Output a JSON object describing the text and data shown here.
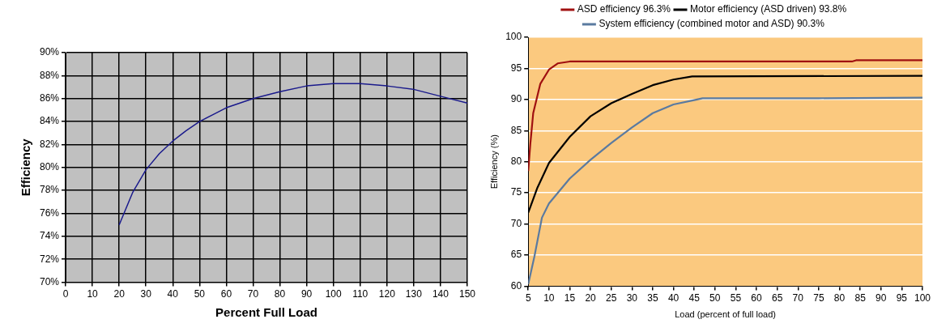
{
  "chart_data": [
    {
      "type": "line",
      "xlabel": "Percent Full Load",
      "ylabel": "Efficiency",
      "xlim": [
        0,
        150
      ],
      "xticks": [
        0,
        10,
        20,
        30,
        40,
        50,
        60,
        70,
        80,
        90,
        100,
        110,
        120,
        130,
        140,
        150
      ],
      "ylim": [
        70,
        90
      ],
      "yticks": [
        {
          "value": 70,
          "label": "70%"
        },
        {
          "value": 72,
          "label": "72%"
        },
        {
          "value": 74,
          "label": "74%"
        },
        {
          "value": 76,
          "label": "76%"
        },
        {
          "value": 78,
          "label": "78%"
        },
        {
          "value": 80,
          "label": "80%"
        },
        {
          "value": 82,
          "label": "82%"
        },
        {
          "value": 84,
          "label": "84%"
        },
        {
          "value": 86,
          "label": "86%"
        },
        {
          "value": 88,
          "label": "88%"
        },
        {
          "value": 90,
          "label": "90%"
        }
      ],
      "grid": true,
      "legend": false,
      "marker": "none",
      "line_style": "solid",
      "series": [
        {
          "color": "#1a1a8c",
          "x": [
            20,
            25,
            30,
            35,
            40,
            45,
            50,
            55,
            60,
            70,
            80,
            90,
            100,
            110,
            120,
            130,
            140,
            150
          ],
          "values": [
            75.0,
            77.8,
            79.8,
            81.2,
            82.3,
            83.2,
            84.0,
            84.6,
            85.2,
            86.0,
            86.6,
            87.1,
            87.3,
            87.3,
            87.1,
            86.8,
            86.2,
            85.6
          ]
        }
      ]
    },
    {
      "type": "line",
      "xlabel": "Load (percent of full load)",
      "ylabel": "Efficiency (%)",
      "xlim": [
        5,
        100
      ],
      "xticks": [
        5,
        10,
        15,
        20,
        25,
        30,
        35,
        40,
        45,
        50,
        55,
        60,
        65,
        70,
        75,
        80,
        85,
        90,
        95,
        100
      ],
      "ylim": [
        60,
        100
      ],
      "yticks": [
        60,
        65,
        70,
        75,
        80,
        85,
        90,
        95,
        100
      ],
      "grid": "y",
      "legend": "top",
      "marker": "none",
      "line_style": "solid",
      "series": [
        {
          "name": "ASD efficiency 96.3%",
          "color": "#a01010",
          "x": [
            5,
            5.5,
            6.2,
            7.9,
            10,
            12.1,
            15,
            83,
            84,
            100
          ],
          "values": [
            78.5,
            82.8,
            87.8,
            92.5,
            94.8,
            95.8,
            96.1,
            96.1,
            96.3,
            96.3
          ]
        },
        {
          "name": "Motor efficiency (ASD driven) 93.8%",
          "color": "#000000",
          "x": [
            5,
            7.2,
            10,
            15,
            20,
            25,
            30,
            35,
            40,
            44.5,
            100
          ],
          "values": [
            71.8,
            75.8,
            79.8,
            84.0,
            87.3,
            89.4,
            90.9,
            92.3,
            93.2,
            93.7,
            93.8
          ]
        },
        {
          "name": "System efficiency (combined motor and ASD) 90.3%",
          "color": "#5a7aa0",
          "x": [
            5,
            6.5,
            8.3,
            10,
            15,
            20,
            25,
            30,
            35,
            40,
            45,
            47,
            75,
            100
          ],
          "values": [
            60.3,
            64.8,
            71.0,
            73.3,
            77.3,
            80.3,
            83.0,
            85.5,
            87.8,
            89.2,
            89.9,
            90.2,
            90.2,
            90.3
          ]
        }
      ]
    }
  ]
}
